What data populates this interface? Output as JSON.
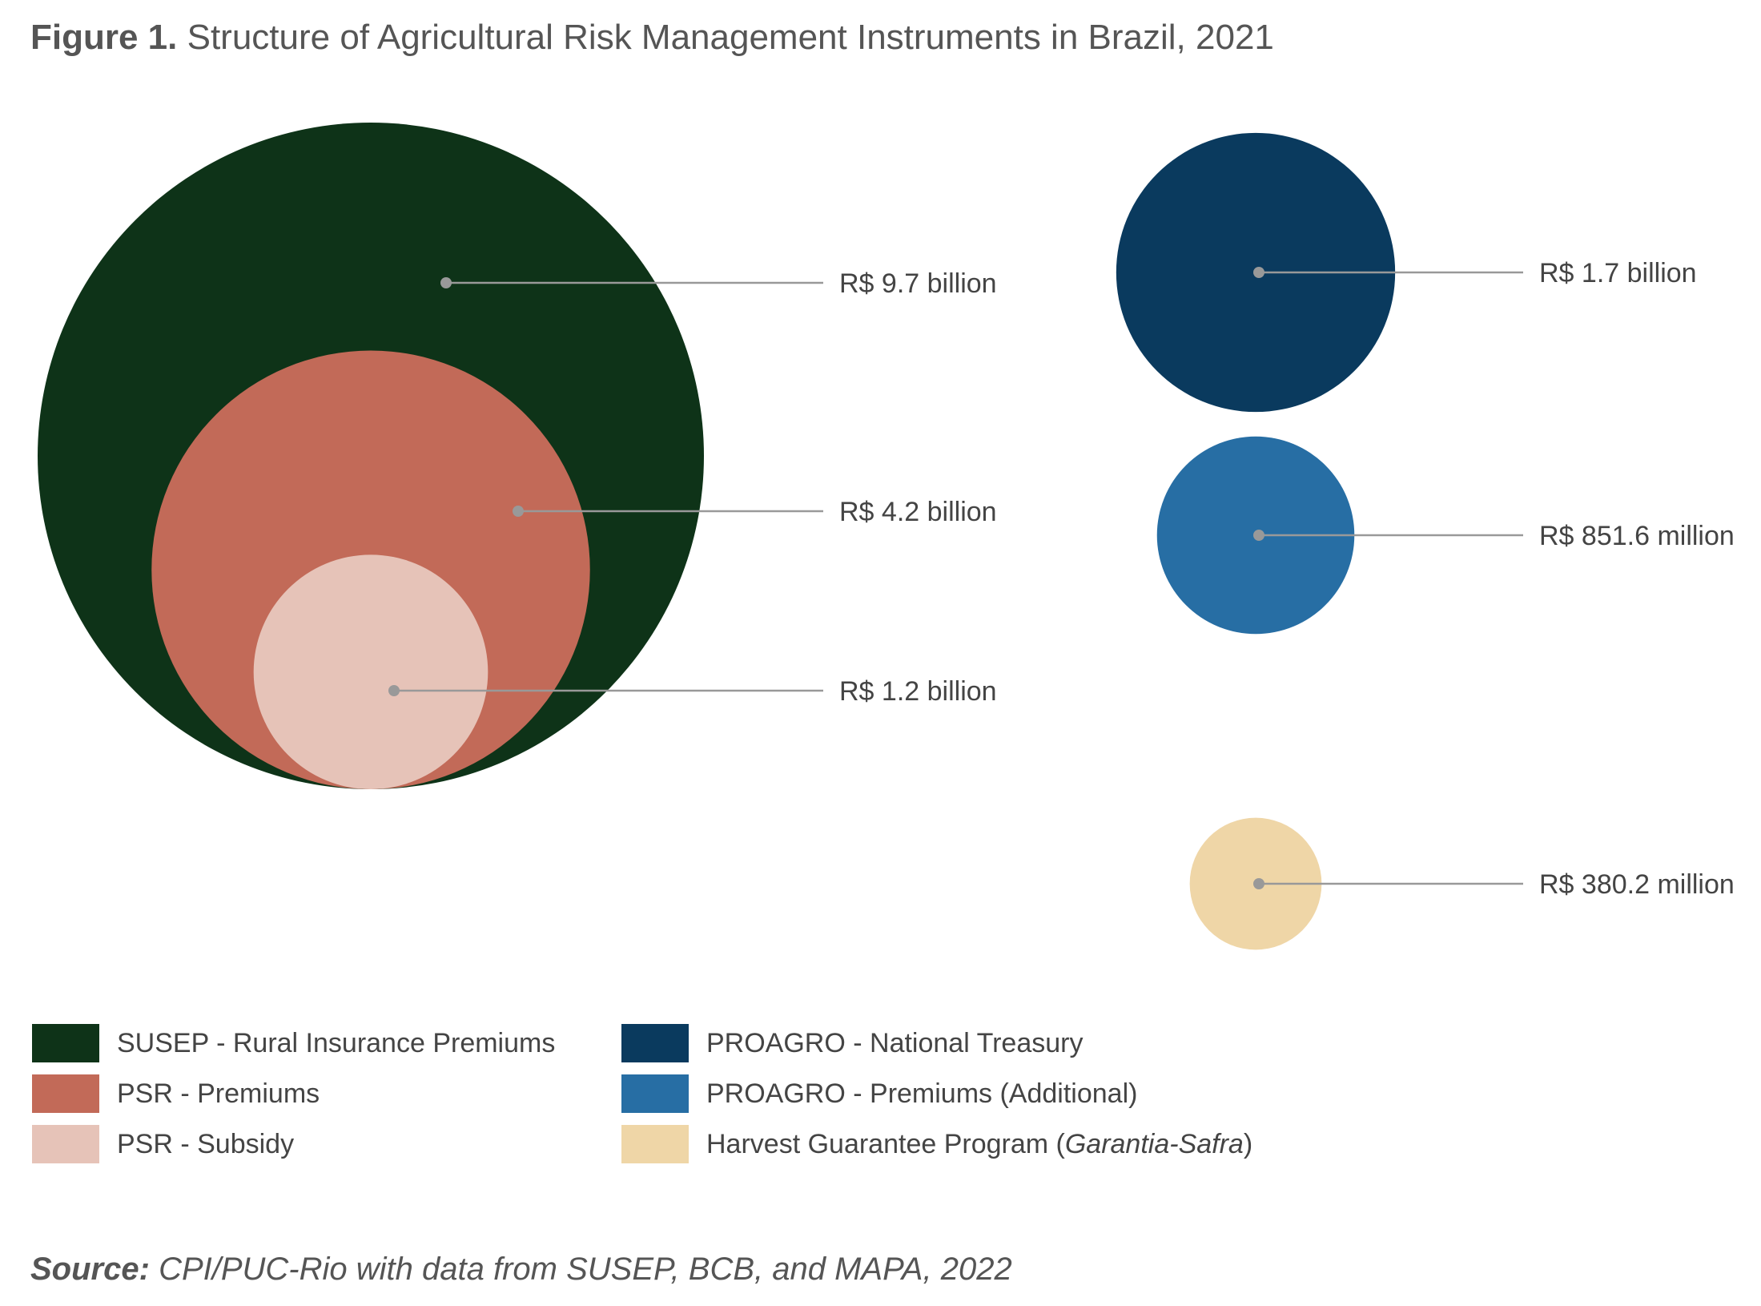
{
  "figure": {
    "label": "Figure 1.",
    "title": "Structure of Agricultural Risk Management Instruments in Brazil, 2021"
  },
  "colors": {
    "susep": "#0e3318",
    "psr_premiums": "#c26a58",
    "psr_subsidy": "#e6c3b8",
    "proagro_treasury": "#0a3a5e",
    "proagro_premiums": "#276ea4",
    "garantia_safra": "#efd6a7",
    "leader": "#999999"
  },
  "chart_data": {
    "type": "bubble",
    "unit": "R$",
    "series": [
      {
        "name": "SUSEP - Rural Insurance Premiums",
        "value": 9.7,
        "value_rs_millions": 9700,
        "label": "R$ 9.7 billion",
        "color": "#0e3318",
        "group": "nested"
      },
      {
        "name": "PSR - Premiums",
        "value": 4.2,
        "value_rs_millions": 4200,
        "label": "R$ 4.2 billion",
        "color": "#c26a58",
        "group": "nested"
      },
      {
        "name": "PSR - Subsidy",
        "value": 1.2,
        "value_rs_millions": 1200,
        "label": "R$ 1.2 billion",
        "color": "#e6c3b8",
        "group": "nested"
      },
      {
        "name": "PROAGRO - National Treasury",
        "value": 1.7,
        "value_rs_millions": 1700,
        "label": "R$ 1.7 billion",
        "color": "#0a3a5e",
        "group": "column"
      },
      {
        "name": "PROAGRO - Premiums (Additional)",
        "value": 0.8516,
        "value_rs_millions": 851.6,
        "label": "R$ 851.6 million",
        "color": "#276ea4",
        "group": "column"
      },
      {
        "name": "Harvest Guarantee Program (Garantia-Safra)",
        "value": 0.3802,
        "value_rs_millions": 380.2,
        "label": "R$ 380.2 million",
        "color": "#efd6a7",
        "group": "column"
      }
    ]
  },
  "legend": {
    "items": [
      {
        "label": "SUSEP - Rural Insurance Premiums",
        "color": "#0e3318"
      },
      {
        "label": "PSR - Premiums",
        "color": "#c26a58"
      },
      {
        "label": "PSR - Subsidy",
        "color": "#e6c3b8"
      },
      {
        "label": "PROAGRO - National Treasury",
        "color": "#0a3a5e"
      },
      {
        "label": "PROAGRO - Premiums (Additional)",
        "color": "#276ea4"
      },
      {
        "label_prefix": "Harvest Guarantee Program (",
        "label_italic": "Garantia-Safra",
        "label_suffix": ")",
        "color": "#efd6a7"
      }
    ]
  },
  "source": {
    "label": "Source:",
    "text": "CPI/PUC-Rio with data from SUSEP, BCB, and MAPA, 2022"
  }
}
